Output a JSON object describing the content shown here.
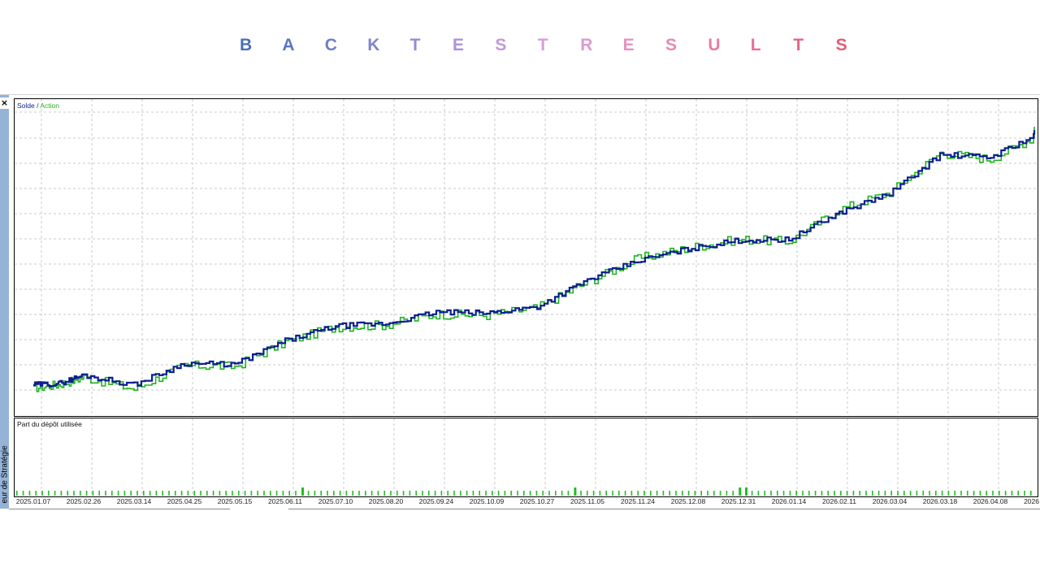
{
  "page_title": "BACKTESTRESULTS",
  "title_colors": [
    "#4b6fb8",
    "#5c77bf",
    "#6d7fc6",
    "#7f86cd",
    "#938dd4",
    "#aa93d8",
    "#c199da",
    "#d59ed9",
    "#e09ad0",
    "#e592c3",
    "#e888b3",
    "#e97ca3",
    "#e87093",
    "#e76584",
    "#e55a75"
  ],
  "sidebar": {
    "close_icon": "×",
    "label": "eur de Stratégie"
  },
  "legend": {
    "balance": "Solde",
    "separator": " / ",
    "equity": "Action"
  },
  "sub_panel_label": "Part du dépôt utilisée",
  "colors": {
    "balance": "#0b1f8f",
    "equity": "#21b421",
    "deposit_bars": "#1fbf1f",
    "grid": "#c8c8c8"
  },
  "chart_data": {
    "type": "line",
    "x_labels": [
      "2025.01.07",
      "2025.02.26",
      "2025.03.14",
      "2025.04.25",
      "2025.05.15",
      "2025.06.11",
      "2025.07.10",
      "2025.08.20",
      "2025.09.24",
      "2025.10.09",
      "2025.10.27",
      "2025.11.05",
      "2025.11.24",
      "2025.12.08",
      "2025.12.31",
      "2026.01.14",
      "2026.02.11",
      "2026.03.04",
      "2026.03.18",
      "2026.04.08",
      "2026"
    ],
    "grid": true,
    "series": [
      {
        "name": "Solde",
        "color": "#0b1f8f",
        "x": [
          0,
          0.5,
          1,
          2,
          3,
          4,
          5,
          6,
          7,
          8,
          9,
          10,
          11,
          12,
          13,
          14,
          15,
          16,
          17,
          18,
          19,
          20,
          20.5
        ],
        "values": [
          4,
          5,
          13,
          4,
          24,
          23,
          45,
          59,
          61,
          72,
          71,
          77,
          102,
          120,
          131,
          139,
          140,
          165,
          183,
          219,
          217,
          240,
          240
        ]
      },
      {
        "name": "Action",
        "color": "#21b421",
        "x": [
          0,
          0.5,
          1,
          2,
          3,
          4,
          5,
          6,
          7,
          8,
          9,
          10,
          11,
          12,
          13,
          14,
          15,
          16,
          17,
          18,
          19,
          20,
          20.5
        ],
        "values": [
          1,
          4,
          11,
          0,
          22,
          21,
          44,
          58,
          60,
          70,
          69,
          76,
          100,
          122,
          132,
          140,
          138,
          168,
          184,
          221,
          215,
          239,
          242
        ]
      }
    ],
    "sub_chart": {
      "label": "Part du dépôt utilisée",
      "type": "bar",
      "spikes_at_x": [
        5.35,
        10.7,
        14.05
      ]
    }
  }
}
